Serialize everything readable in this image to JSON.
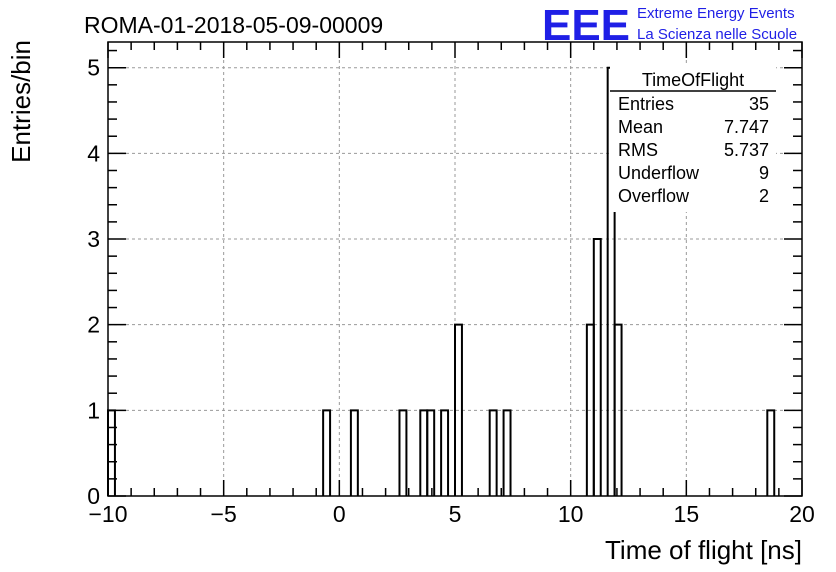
{
  "chart_data": {
    "type": "bar",
    "title": "ROMA-01-2018-05-09-00009",
    "xlabel": "Time of flight [ns]",
    "ylabel": "Entries/bin",
    "xlim": [
      -10,
      20
    ],
    "ylim": [
      0,
      5.3
    ],
    "xticks": [
      -10,
      -5,
      0,
      5,
      10,
      15,
      20
    ],
    "yticks": [
      0,
      1,
      2,
      3,
      4,
      5
    ],
    "grid": true,
    "bin_width": 0.3,
    "bins": [
      {
        "x": -10.0,
        "value": 1
      },
      {
        "x": -0.7,
        "value": 1
      },
      {
        "x": 0.5,
        "value": 1
      },
      {
        "x": 2.6,
        "value": 1
      },
      {
        "x": 3.5,
        "value": 1
      },
      {
        "x": 3.8,
        "value": 1
      },
      {
        "x": 4.4,
        "value": 1
      },
      {
        "x": 5.0,
        "value": 2
      },
      {
        "x": 6.5,
        "value": 1
      },
      {
        "x": 7.1,
        "value": 1
      },
      {
        "x": 10.7,
        "value": 2
      },
      {
        "x": 11.0,
        "value": 3
      },
      {
        "x": 11.6,
        "value": 5
      },
      {
        "x": 11.9,
        "value": 2
      },
      {
        "x": 18.5,
        "value": 1
      }
    ],
    "stats": {
      "title": "TimeOfFlight",
      "rows": [
        {
          "label": "Entries",
          "value": "35"
        },
        {
          "label": "Mean",
          "value": "7.747"
        },
        {
          "label": "RMS",
          "value": "5.737"
        },
        {
          "label": "Underflow",
          "value": "9"
        },
        {
          "label": "Overflow",
          "value": "2"
        }
      ]
    },
    "branding": {
      "logo": "EEE",
      "line1": "Extreme Energy Events",
      "line2": "La Scienza nelle Scuole",
      "color": "#1f1fe6"
    }
  }
}
